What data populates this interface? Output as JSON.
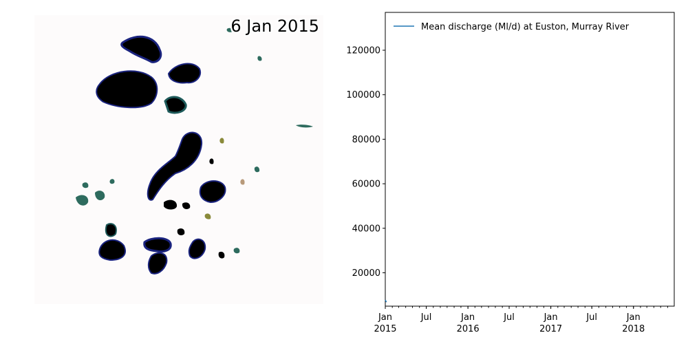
{
  "map": {
    "date_label": "6 Jan 2015"
  },
  "chart_data": {
    "type": "line",
    "title": "",
    "xlabel": "",
    "ylabel": "",
    "legend": {
      "placement": "top-left",
      "entries": [
        "Mean discharge (Ml/d) at Euston, Murray River"
      ]
    },
    "series": [
      {
        "name": "Mean discharge (Ml/d) at Euston, Murray River",
        "color": "#1f77b4",
        "x": [
          "2015-01-01",
          "2015-01-03",
          "2015-01-06"
        ],
        "y": [
          7800,
          7400,
          6800
        ]
      }
    ],
    "xlim": [
      "2015-01-01",
      "2018-06-30"
    ],
    "ylim": [
      5000,
      137000
    ],
    "y_ticks": [
      20000,
      40000,
      60000,
      80000,
      100000,
      120000
    ],
    "x_ticks": [
      {
        "date": "2015-01-01",
        "label": "Jan",
        "sublabel": "2015"
      },
      {
        "date": "2015-07-01",
        "label": "Jul",
        "sublabel": ""
      },
      {
        "date": "2016-01-01",
        "label": "Jan",
        "sublabel": "2016"
      },
      {
        "date": "2016-07-01",
        "label": "Jul",
        "sublabel": ""
      },
      {
        "date": "2017-01-01",
        "label": "Jan",
        "sublabel": "2017"
      },
      {
        "date": "2017-07-01",
        "label": "Jul",
        "sublabel": ""
      },
      {
        "date": "2018-01-01",
        "label": "Jan",
        "sublabel": "2018"
      }
    ],
    "grid": false
  }
}
